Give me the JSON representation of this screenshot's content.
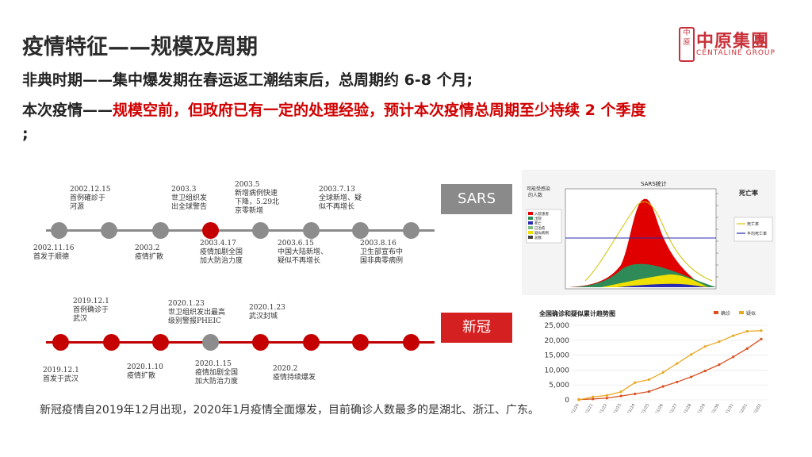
{
  "title": "疫情特征——规模及周期",
  "line1": "非典时期——集中爆发期在春运返工潮结束后，总周期约 6-8 个月;",
  "line2": {
    "prefix": "本次疫情——",
    "highlight": "规模空前，但政府已有一定的处理经验，预计本次疫情总周期至少持续 2 个季度",
    "suffix": ";"
  },
  "logo": {
    "cn": "中原集團",
    "en": "CENTALINE GROUP",
    "mark": "中原"
  },
  "sars_timeline": {
    "tag": "SARS",
    "top_events": [
      {
        "date": "2002.12.15",
        "text1": "首例確診于",
        "text2": "河源",
        "text3": ""
      },
      {
        "date": "2003.3",
        "text1": "世卫组织发",
        "text2": "出全球警告",
        "text3": ""
      },
      {
        "date": "2003.5",
        "text1": "新增病例快速",
        "text2": "下降，5.29北",
        "text3": "京零新增"
      },
      {
        "date": "2003.7.13",
        "text1": "全球新增、疑",
        "text2": "似不再增长",
        "text3": ""
      }
    ],
    "bottom_events": [
      {
        "date": "2002.11.16",
        "text1": "首发于顺德",
        "text2": ""
      },
      {
        "date": "2003.2",
        "text1": "疫情扩散",
        "text2": ""
      },
      {
        "date": "2003.4.17",
        "text1": "疫情加剧全国",
        "text2": "加大防治力度"
      },
      {
        "date": "2003.6.15",
        "text1": "中国大陆新增、",
        "text2": "疑似不再增长"
      },
      {
        "date": "2003.8.16",
        "text1": "卫生部宣布中",
        "text2": "国非典零病例"
      }
    ]
  },
  "covid_timeline": {
    "tag": "新冠",
    "top_events": [
      {
        "date": "2019.12.1",
        "text1": "首例确诊于",
        "text2": "武汉"
      },
      {
        "date": "2020.1.23",
        "text1": "世卫组织发出最高",
        "text2": "级别警报PHEIC"
      },
      {
        "date": "2020.1.23",
        "text1": "武汉封城",
        "text2": ""
      }
    ],
    "bottom_events": [
      {
        "date": "2019.12.1",
        "text1": "首发于武汉",
        "text2": ""
      },
      {
        "date": "2020.1.10",
        "text1": "疫情扩散",
        "text2": ""
      },
      {
        "date": "2020.1.15",
        "text1": "疫情加剧全国",
        "text2": "加大防治力度"
      },
      {
        "date": "2020.2",
        "text1": "疫情持续爆发",
        "text2": ""
      }
    ]
  },
  "sars_chart": {
    "title": "SARS统计",
    "left_label_1": "可能受感染",
    "left_label_2": "的人数",
    "right_label": "死亡率",
    "legend_left": [
      "入院患者",
      "出院",
      "死亡",
      "已治愈",
      "疑似病例",
      "总数"
    ],
    "legend_right": [
      "死亡率",
      "平均死亡率"
    ],
    "colors": {
      "red": "#e00000",
      "green": "#2e8b57",
      "yellow": "#f0e000",
      "blue": "#2a2ab0",
      "orange_line": "#e0a000"
    }
  },
  "chart_data": {
    "type": "line",
    "title": "全国确诊和疑似累计趋势图",
    "series": [
      {
        "name": "确诊",
        "color": "#d9501e",
        "values": [
          100,
          300,
          600,
          1300,
          2000,
          2800,
          4500,
          6000,
          7700,
          9700,
          11800,
          14400,
          17200,
          20400
        ]
      },
      {
        "name": "疑似",
        "color": "#e8a820",
        "values": [
          0,
          1000,
          1500,
          2700,
          5800,
          6800,
          9200,
          12200,
          15200,
          17900,
          19500,
          21500,
          23000,
          23200
        ]
      }
    ],
    "categories": [
      "01/20",
      "01/21",
      "01/22",
      "01/23",
      "01/24",
      "01/25",
      "01/26",
      "01/27",
      "01/28",
      "01/29",
      "01/30",
      "01/31",
      "02/01",
      "02/02"
    ],
    "yticks": [
      "25,000",
      "20,000",
      "15,000",
      "10,000",
      "5,000",
      "0"
    ],
    "ylim": [
      0,
      25000
    ]
  },
  "footer": "新冠疫情自2019年12月出现，2020年1月疫情全面爆发，目前确诊人数最多的是湖北、浙江、广东。"
}
